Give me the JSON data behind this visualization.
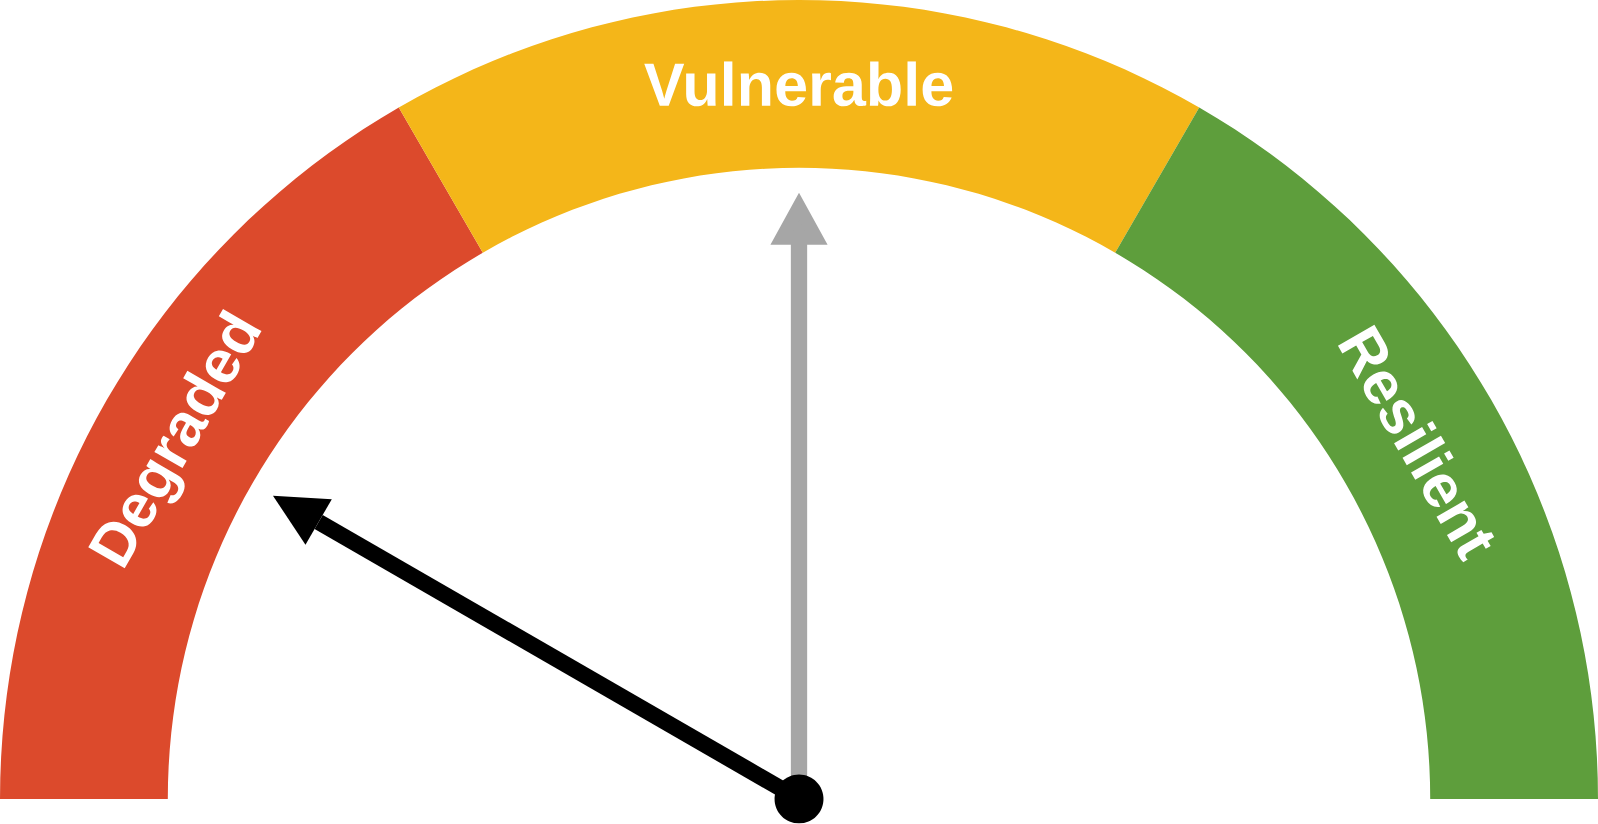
{
  "chart_data": {
    "type": "donut",
    "categories": [
      "Degraded",
      "Vulnerable",
      "Resilient"
    ],
    "values": [
      33.3,
      33.4,
      33.3
    ],
    "colors": [
      "#dc4a2c",
      "#f4b619",
      "#5e9e3c"
    ],
    "needle": "Degraded"
  }
}
